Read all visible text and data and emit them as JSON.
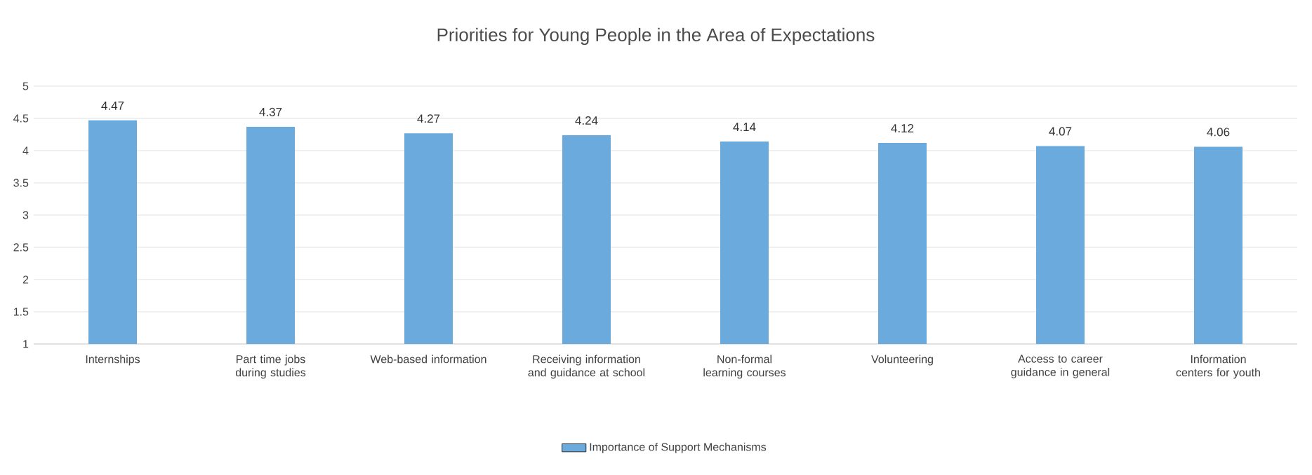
{
  "chart_data": {
    "type": "bar",
    "title": "Priorities for Young People in the Area of Expectations",
    "categories": [
      "Internships",
      "Part time jobs during studies",
      "Web-based information",
      "Receiving information and guidance at school",
      "Non-formal learning courses",
      "Volunteering",
      "Access to career guidance in general",
      "Information centers for youth"
    ],
    "series": [
      {
        "name": "Importance of Support Mechanisms",
        "color": "#6aaadc",
        "values": [
          4.47,
          4.37,
          4.27,
          4.24,
          4.14,
          4.12,
          4.07,
          4.06
        ]
      }
    ],
    "ylim": [
      1,
      5
    ],
    "yticks": [
      1,
      1.5,
      2,
      2.5,
      3,
      3.5,
      4,
      4.5,
      5
    ],
    "grid": "y",
    "legend": "bottom",
    "data_labels": true
  }
}
